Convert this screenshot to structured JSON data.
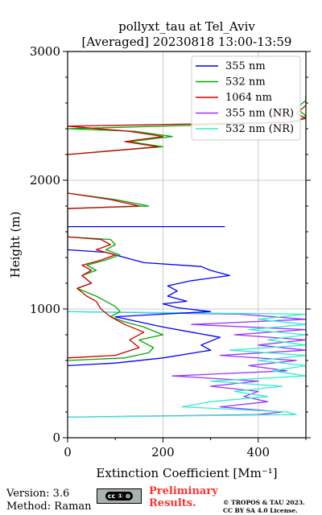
{
  "chart_data": {
    "type": "line",
    "title": "pollyxt_tau at Tel_Aviv",
    "subtitle": "[Averaged] 20230818 13:00-13:59",
    "xlabel": "Extinction Coefficient [Mm⁻¹]",
    "ylabel": "Height (m)",
    "xlim": [
      0,
      500
    ],
    "ylim": [
      0,
      3000
    ],
    "xticks": [
      "0",
      "200",
      "400"
    ],
    "yticks": [
      "0",
      "1000",
      "2000",
      "3000"
    ],
    "grid": true,
    "legend_position": "top-right",
    "series": [
      {
        "name": "355 nm",
        "color": "#0000ff",
        "points": [
          [
            0,
            560
          ],
          [
            100,
            580
          ],
          [
            200,
            620
          ],
          [
            300,
            680
          ],
          [
            280,
            720
          ],
          [
            320,
            780
          ],
          [
            260,
            820
          ],
          [
            200,
            860
          ],
          [
            150,
            900
          ],
          [
            100,
            940
          ],
          [
            200,
            960
          ],
          [
            300,
            980
          ],
          [
            230,
            1010
          ],
          [
            200,
            1040
          ],
          [
            250,
            1060
          ],
          [
            210,
            1100
          ],
          [
            230,
            1140
          ],
          [
            210,
            1180
          ],
          [
            260,
            1220
          ],
          [
            340,
            1260
          ],
          [
            300,
            1300
          ],
          [
            280,
            1330
          ],
          [
            160,
            1360
          ],
          [
            120,
            1400
          ],
          [
            80,
            1440
          ],
          [
            0,
            1460
          ],
          [
            0,
            1640
          ],
          [
            330,
            1640
          ]
        ]
      },
      {
        "name": "532 nm",
        "color": "#00aa00",
        "points": [
          [
            0,
            600
          ],
          [
            120,
            620
          ],
          [
            170,
            660
          ],
          [
            180,
            700
          ],
          [
            150,
            760
          ],
          [
            200,
            800
          ],
          [
            160,
            860
          ],
          [
            120,
            900
          ],
          [
            90,
            940
          ],
          [
            110,
            980
          ],
          [
            100,
            1020
          ],
          [
            80,
            1060
          ],
          [
            60,
            1100
          ],
          [
            20,
            1160
          ],
          [
            50,
            1200
          ],
          [
            30,
            1260
          ],
          [
            60,
            1300
          ],
          [
            40,
            1340
          ],
          [
            80,
            1380
          ],
          [
            110,
            1420
          ],
          [
            80,
            1460
          ],
          [
            100,
            1500
          ],
          [
            90,
            1540
          ],
          [
            0,
            1560
          ],
          [
            0,
            1780
          ],
          [
            170,
            1800
          ],
          [
            100,
            1850
          ],
          [
            0,
            1900
          ],
          [
            0,
            2200
          ],
          [
            200,
            2260
          ],
          [
            130,
            2300
          ],
          [
            220,
            2340
          ],
          [
            140,
            2380
          ],
          [
            0,
            2400
          ],
          [
            480,
            2450
          ],
          [
            500,
            2500
          ],
          [
            480,
            2560
          ],
          [
            500,
            2620
          ],
          [
            500,
            2660
          ]
        ]
      },
      {
        "name": "1064 nm",
        "color": "#cc0000",
        "points": [
          [
            0,
            620
          ],
          [
            100,
            640
          ],
          [
            150,
            700
          ],
          [
            130,
            760
          ],
          [
            160,
            820
          ],
          [
            120,
            880
          ],
          [
            90,
            940
          ],
          [
            70,
            1000
          ],
          [
            60,
            1060
          ],
          [
            40,
            1100
          ],
          [
            20,
            1160
          ],
          [
            50,
            1200
          ],
          [
            30,
            1260
          ],
          [
            50,
            1300
          ],
          [
            30,
            1340
          ],
          [
            70,
            1380
          ],
          [
            100,
            1420
          ],
          [
            60,
            1460
          ],
          [
            90,
            1500
          ],
          [
            70,
            1540
          ],
          [
            0,
            1560
          ],
          [
            0,
            1780
          ],
          [
            150,
            1800
          ],
          [
            90,
            1850
          ],
          [
            0,
            1900
          ],
          [
            0,
            2200
          ],
          [
            190,
            2260
          ],
          [
            120,
            2300
          ],
          [
            200,
            2340
          ],
          [
            130,
            2380
          ],
          [
            0,
            2420
          ],
          [
            460,
            2450
          ],
          [
            500,
            2480
          ],
          [
            480,
            2520
          ],
          [
            500,
            2580
          ],
          [
            500,
            2660
          ]
        ]
      },
      {
        "name": "355 nm (NR)",
        "color": "#9933ff",
        "points": [
          [
            0,
            160
          ],
          [
            400,
            180
          ],
          [
            450,
            200
          ],
          [
            320,
            240
          ],
          [
            420,
            280
          ],
          [
            370,
            320
          ],
          [
            400,
            360
          ],
          [
            300,
            400
          ],
          [
            400,
            440
          ],
          [
            220,
            480
          ],
          [
            460,
            520
          ],
          [
            380,
            560
          ],
          [
            480,
            600
          ],
          [
            320,
            640
          ],
          [
            500,
            680
          ],
          [
            400,
            720
          ],
          [
            500,
            760
          ],
          [
            350,
            800
          ],
          [
            500,
            840
          ],
          [
            260,
            880
          ],
          [
            500,
            920
          ],
          [
            360,
            960
          ],
          [
            0,
            980
          ]
        ]
      },
      {
        "name": "532 nm (NR)",
        "color": "#33eecc",
        "points": [
          [
            0,
            160
          ],
          [
            480,
            180
          ],
          [
            460,
            200
          ],
          [
            240,
            240
          ],
          [
            300,
            280
          ],
          [
            420,
            320
          ],
          [
            350,
            360
          ],
          [
            450,
            400
          ],
          [
            300,
            440
          ],
          [
            500,
            480
          ],
          [
            430,
            520
          ],
          [
            500,
            560
          ],
          [
            400,
            600
          ],
          [
            500,
            640
          ],
          [
            340,
            680
          ],
          [
            500,
            720
          ],
          [
            420,
            760
          ],
          [
            500,
            800
          ],
          [
            380,
            840
          ],
          [
            500,
            880
          ],
          [
            400,
            920
          ],
          [
            500,
            960
          ],
          [
            0,
            980
          ]
        ]
      }
    ]
  },
  "footer": {
    "version": "Version: 3.6",
    "method": "Method: Raman",
    "badge": "cc ① ⊜",
    "preliminary_line1": "Preliminary",
    "preliminary_line2": "Results.",
    "preliminary_color": "#ff3333",
    "copyright_line1": "© TROPOS & TAU 2023.",
    "copyright_line2": "CC BY SA 4.0 License."
  }
}
